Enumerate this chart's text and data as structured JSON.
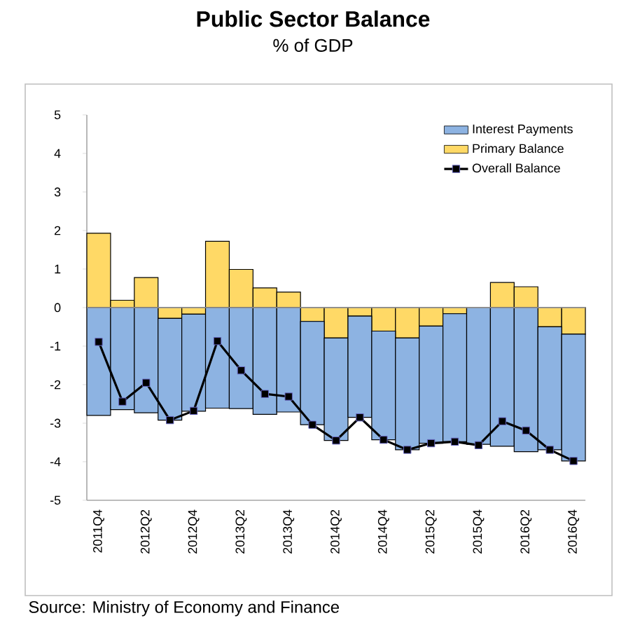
{
  "chart_data": {
    "type": "bar",
    "stacked": true,
    "title": "Public Sector Balance",
    "subtitle": "% of GDP",
    "categories": [
      "2011Q4",
      null,
      "2012Q2",
      null,
      "2012Q4",
      null,
      "2013Q2",
      null,
      "2013Q4",
      null,
      "2014Q2",
      null,
      "2014Q4",
      null,
      "2015Q2",
      null,
      "2015Q4",
      null,
      "2016Q2",
      null,
      "2016Q4"
    ],
    "series": [
      {
        "name": "Primary Balance",
        "color": "#ffd966",
        "values": [
          1.93,
          0.19,
          0.78,
          -0.28,
          -0.17,
          1.72,
          0.99,
          0.51,
          0.4,
          -0.36,
          -0.79,
          -0.22,
          -0.61,
          -0.79,
          -0.48,
          -0.16,
          null,
          0.65,
          0.54,
          -0.5,
          -0.69
        ]
      },
      {
        "name": "Interest Payments",
        "color": "#8db3e2",
        "values": [
          -2.8,
          -2.65,
          -2.73,
          -2.64,
          -2.52,
          -2.61,
          -2.62,
          -2.77,
          -2.71,
          -2.68,
          -2.66,
          -2.63,
          -2.82,
          -2.9,
          -3.04,
          -3.32,
          -3.55,
          -3.6,
          -3.74,
          -3.19,
          -3.29
        ]
      },
      {
        "name": "Overall Balance",
        "type": "line",
        "color": "#000000",
        "marker": "square",
        "values": [
          -0.89,
          -2.44,
          -1.95,
          -2.92,
          -2.68,
          -0.87,
          -1.63,
          -2.24,
          -2.31,
          -3.04,
          -3.45,
          -2.85,
          -3.43,
          -3.69,
          -3.52,
          -3.48,
          -3.57,
          -2.95,
          -3.19,
          -3.69,
          -3.98
        ]
      }
    ],
    "ylim": [
      -5,
      5
    ],
    "yticks": [
      -5,
      -4,
      -3,
      -2,
      -1,
      0,
      1,
      2,
      3,
      4,
      5
    ],
    "legend": "top right",
    "annotations": [
      "Source: Ministry of Economy and Finance"
    ]
  }
}
